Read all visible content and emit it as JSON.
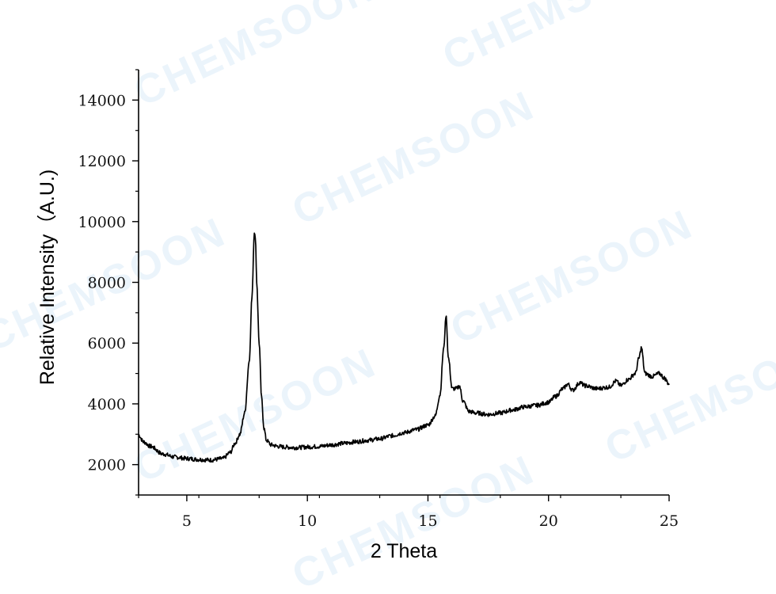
{
  "watermark": "CHEMSOON",
  "chart_data": {
    "type": "line",
    "title": "",
    "xlabel": "2 Theta",
    "ylabel": "Relative Intensity（A.U.)",
    "xlim": [
      3,
      25
    ],
    "ylim": [
      1000,
      15000
    ],
    "x_ticks": [
      5,
      10,
      15,
      20,
      25
    ],
    "y_ticks": [
      2000,
      4000,
      6000,
      8000,
      10000,
      12000,
      14000
    ],
    "line_color": "#000000",
    "grid": false,
    "legend": "none",
    "series": [
      {
        "x": [
          3.0,
          3.2,
          3.5,
          4.0,
          4.5,
          5.0,
          5.5,
          6.0,
          6.5,
          6.8,
          7.0,
          7.2,
          7.4,
          7.6,
          7.7,
          7.8,
          7.85,
          7.9,
          8.0,
          8.1,
          8.2,
          8.3,
          8.5,
          8.8,
          9.0,
          9.5,
          10.0,
          10.5,
          11.0,
          11.5,
          12.0,
          12.5,
          13.0,
          13.5,
          14.0,
          14.5,
          15.0,
          15.3,
          15.5,
          15.65,
          15.75,
          15.85,
          16.0,
          16.2,
          16.3,
          16.45,
          16.7,
          17.0,
          17.5,
          18.0,
          18.5,
          19.0,
          19.5,
          20.0,
          20.3,
          20.6,
          20.8,
          21.0,
          21.3,
          21.5,
          22.0,
          22.5,
          22.8,
          23.0,
          23.3,
          23.6,
          23.75,
          23.85,
          24.0,
          24.3,
          24.6,
          24.8,
          25.0
        ],
        "y": [
          2980,
          2750,
          2600,
          2350,
          2250,
          2200,
          2170,
          2150,
          2200,
          2400,
          2700,
          3000,
          3700,
          5500,
          7500,
          9650,
          9400,
          8000,
          6000,
          4200,
          3200,
          2800,
          2650,
          2600,
          2580,
          2560,
          2580,
          2600,
          2650,
          2700,
          2750,
          2800,
          2850,
          2950,
          3050,
          3150,
          3300,
          3600,
          4300,
          5800,
          6900,
          5500,
          4500,
          4500,
          4600,
          4100,
          3750,
          3700,
          3650,
          3700,
          3800,
          3900,
          3950,
          4050,
          4250,
          4500,
          4650,
          4450,
          4700,
          4600,
          4500,
          4550,
          4750,
          4600,
          4800,
          5000,
          5500,
          5850,
          5000,
          4900,
          5000,
          4850,
          4650
        ]
      }
    ]
  }
}
